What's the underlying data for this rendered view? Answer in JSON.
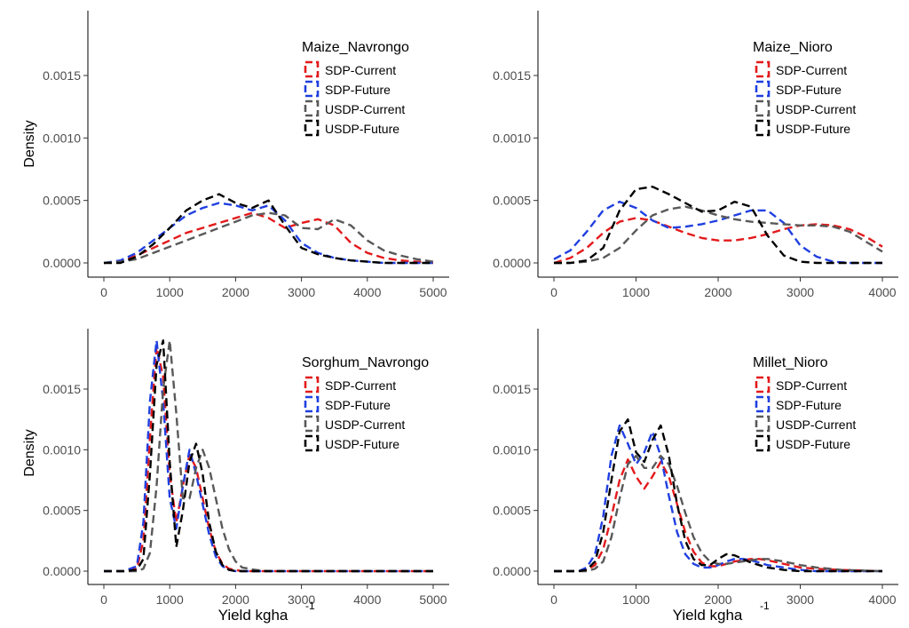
{
  "figure": {
    "y_axis_label": "Density",
    "x_axis_label_main": "Yield  kgha",
    "x_axis_label_sup": "-1"
  },
  "series_styles": [
    {
      "name": "SDP-Current",
      "color": "#e31a1c"
    },
    {
      "name": "SDP-Future",
      "color": "#1f3fe0"
    },
    {
      "name": "USDP-Current",
      "color": "#595959"
    },
    {
      "name": "USDP-Future",
      "color": "#000000"
    }
  ],
  "chart_data": [
    {
      "type": "line",
      "title": "Maize_Navrongo",
      "xlim": [
        0,
        5000
      ],
      "ylim": [
        0,
        0.0015
      ],
      "xticks": [
        "0",
        "1000",
        "2000",
        "3000",
        "4000",
        "5000"
      ],
      "yticks": [
        "0.0000",
        "0.0005",
        "0.0010",
        "0.0015"
      ],
      "grid": false,
      "legend": "top-right",
      "series": [
        {
          "name": "SDP-Current",
          "x": [
            0,
            250,
            500,
            750,
            1000,
            1250,
            1500,
            1750,
            2000,
            2250,
            2500,
            2750,
            3000,
            3250,
            3500,
            3750,
            4000,
            4250,
            4500,
            4750,
            5000
          ],
          "y": [
            0,
            1e-05,
            6e-05,
            0.00012,
            0.00018,
            0.00024,
            0.00028,
            0.00032,
            0.00036,
            0.0004,
            0.00036,
            0.00028,
            0.00032,
            0.00035,
            0.0003,
            0.00016,
            8e-05,
            4e-05,
            2e-05,
            1e-05,
            0
          ]
        },
        {
          "name": "SDP-Future",
          "x": [
            0,
            250,
            500,
            750,
            1000,
            1250,
            1500,
            1750,
            2000,
            2250,
            2500,
            2750,
            3000,
            3250,
            3500,
            3750,
            4000,
            4250,
            4500,
            4750,
            5000
          ],
          "y": [
            0,
            2e-05,
            8e-05,
            0.00018,
            0.00028,
            0.00038,
            0.00044,
            0.00048,
            0.00046,
            0.00042,
            0.00046,
            0.00034,
            0.00016,
            8e-05,
            4e-05,
            2e-05,
            1e-05,
            0,
            0,
            0,
            0
          ]
        },
        {
          "name": "USDP-Current",
          "x": [
            0,
            250,
            500,
            750,
            1000,
            1250,
            1500,
            1750,
            2000,
            2250,
            2500,
            2750,
            3000,
            3250,
            3500,
            3750,
            4000,
            4250,
            4500,
            4750,
            5000
          ],
          "y": [
            0,
            1e-05,
            3e-05,
            8e-05,
            0.00013,
            0.00018,
            0.00023,
            0.00028,
            0.00033,
            0.00038,
            0.0004,
            0.00038,
            0.00028,
            0.00027,
            0.00035,
            0.0003,
            0.00018,
            0.0001,
            6e-05,
            3e-05,
            1e-05
          ]
        },
        {
          "name": "USDP-Future",
          "x": [
            0,
            250,
            500,
            750,
            1000,
            1250,
            1500,
            1750,
            2000,
            2250,
            2500,
            2750,
            3000,
            3250,
            3500,
            3750,
            4000,
            4250,
            4500,
            4750,
            5000
          ],
          "y": [
            0,
            0,
            5e-05,
            0.00015,
            0.00028,
            0.00042,
            0.0005,
            0.00055,
            0.00048,
            0.00044,
            0.0005,
            0.0003,
            0.00012,
            7e-05,
            4e-05,
            2e-05,
            1e-05,
            0,
            0,
            0,
            0
          ]
        }
      ]
    },
    {
      "type": "line",
      "title": "Maize_Nioro",
      "xlim": [
        0,
        4000
      ],
      "ylim": [
        0,
        0.0015
      ],
      "xticks": [
        "0",
        "1000",
        "2000",
        "3000",
        "4000"
      ],
      "yticks": [
        "0.0000",
        "0.0005",
        "0.0010",
        "0.0015"
      ],
      "grid": false,
      "legend": "top-right",
      "series": [
        {
          "name": "SDP-Current",
          "x": [
            0,
            200,
            400,
            600,
            800,
            1000,
            1200,
            1400,
            1600,
            1800,
            2000,
            2200,
            2400,
            2600,
            2800,
            3000,
            3200,
            3400,
            3600,
            3800,
            4000
          ],
          "y": [
            0,
            4e-05,
            0.00012,
            0.00024,
            0.00033,
            0.00036,
            0.00034,
            0.00029,
            0.00024,
            0.0002,
            0.00018,
            0.00018,
            0.0002,
            0.00023,
            0.00027,
            0.0003,
            0.00031,
            0.0003,
            0.00027,
            0.00021,
            0.00013
          ]
        },
        {
          "name": "SDP-Future",
          "x": [
            0,
            200,
            400,
            600,
            800,
            1000,
            1200,
            1400,
            1600,
            1800,
            2000,
            2200,
            2400,
            2600,
            2800,
            3000,
            3200,
            3400,
            3600,
            3800,
            4000
          ],
          "y": [
            3e-05,
            0.0001,
            0.00025,
            0.00042,
            0.00049,
            0.00044,
            0.00034,
            0.00028,
            0.00029,
            0.00031,
            0.00034,
            0.00038,
            0.00042,
            0.00042,
            0.00032,
            0.00014,
            5e-05,
            1e-05,
            0,
            0,
            0
          ]
        },
        {
          "name": "USDP-Current",
          "x": [
            0,
            200,
            400,
            600,
            800,
            1000,
            1200,
            1400,
            1600,
            1800,
            2000,
            2200,
            2400,
            2600,
            2800,
            3000,
            3200,
            3400,
            3600,
            3800,
            4000
          ],
          "y": [
            0,
            0,
            1e-05,
            4e-05,
            0.00012,
            0.00026,
            0.00038,
            0.00043,
            0.00045,
            0.00042,
            0.00038,
            0.00035,
            0.00033,
            0.00032,
            0.00031,
            0.0003,
            0.0003,
            0.00029,
            0.00025,
            0.00017,
            9e-05
          ]
        },
        {
          "name": "USDP-Future",
          "x": [
            0,
            200,
            400,
            600,
            800,
            1000,
            1200,
            1400,
            1600,
            1800,
            2000,
            2200,
            2400,
            2600,
            2800,
            3000,
            3200,
            3400,
            3600,
            3800,
            4000
          ],
          "y": [
            0,
            0,
            2e-05,
            0.00012,
            0.00042,
            0.00059,
            0.00061,
            0.00055,
            0.00048,
            0.00041,
            0.00042,
            0.00049,
            0.00045,
            0.00022,
            6e-05,
            1e-05,
            0,
            0,
            0,
            0,
            0
          ]
        }
      ]
    },
    {
      "type": "line",
      "title": "Sorghum_Navrongo",
      "xlim": [
        0,
        5000
      ],
      "ylim": [
        0,
        0.0015
      ],
      "xticks": [
        "0",
        "1000",
        "2000",
        "3000",
        "4000",
        "5000"
      ],
      "yticks": [
        "0.0000",
        "0.0005",
        "0.0010",
        "0.0015"
      ],
      "grid": false,
      "legend": "top-right",
      "series": [
        {
          "name": "SDP-Current",
          "x": [
            0,
            300,
            500,
            600,
            700,
            800,
            900,
            1000,
            1100,
            1200,
            1300,
            1400,
            1500,
            1600,
            1700,
            1800,
            1900,
            2000,
            2100,
            2300,
            2500,
            3000,
            4000,
            5000
          ],
          "y": [
            0,
            0,
            2e-05,
            0.00025,
            0.0011,
            0.00185,
            0.0016,
            0.0008,
            0.0004,
            0.0007,
            0.00096,
            0.00085,
            0.0006,
            0.00035,
            0.00016,
            6e-05,
            2e-05,
            1e-05,
            0,
            0,
            0,
            0,
            0,
            0
          ]
        },
        {
          "name": "SDP-Future",
          "x": [
            0,
            300,
            500,
            600,
            700,
            800,
            900,
            1000,
            1100,
            1200,
            1300,
            1400,
            1500,
            1600,
            1700,
            1800,
            1900,
            2000,
            2100,
            2300,
            2500,
            3000,
            4000,
            5000
          ],
          "y": [
            0,
            0,
            4e-05,
            0.0004,
            0.0014,
            0.0019,
            0.0014,
            0.0006,
            0.00035,
            0.0007,
            0.001,
            0.0008,
            0.00055,
            0.0003,
            0.00012,
            4e-05,
            1e-05,
            0,
            0,
            0,
            0,
            0,
            0,
            0
          ]
        },
        {
          "name": "USDP-Current",
          "x": [
            0,
            300,
            500,
            600,
            700,
            800,
            900,
            1000,
            1100,
            1200,
            1300,
            1400,
            1500,
            1600,
            1700,
            1800,
            1900,
            2000,
            2100,
            2300,
            2500,
            3000,
            4000,
            5000
          ],
          "y": [
            0,
            0,
            0,
            2e-05,
            0.00015,
            0.0007,
            0.0015,
            0.0019,
            0.0013,
            0.0006,
            0.0006,
            0.00085,
            0.001,
            0.00085,
            0.0006,
            0.00035,
            0.00018,
            8e-05,
            3e-05,
            1e-05,
            0,
            0,
            0,
            0
          ]
        },
        {
          "name": "USDP-Future",
          "x": [
            0,
            300,
            500,
            600,
            700,
            800,
            900,
            1000,
            1100,
            1200,
            1300,
            1400,
            1500,
            1600,
            1700,
            1800,
            1900,
            2000,
            2100,
            2300,
            2500,
            3000,
            4000,
            5000
          ],
          "y": [
            0,
            0,
            1e-05,
            0.0001,
            0.0008,
            0.0017,
            0.0019,
            0.0009,
            0.0002,
            0.0005,
            0.0009,
            0.00105,
            0.0008,
            0.0004,
            0.00016,
            5e-05,
            1e-05,
            0,
            0,
            0,
            0,
            0,
            0,
            0
          ]
        }
      ]
    },
    {
      "type": "line",
      "title": "Millet_Nioro",
      "xlim": [
        0,
        4000
      ],
      "ylim": [
        0,
        0.0015
      ],
      "xticks": [
        "0",
        "1000",
        "2000",
        "3000",
        "4000"
      ],
      "yticks": [
        "0.0000",
        "0.0005",
        "0.0010",
        "0.0015"
      ],
      "grid": false,
      "legend": "top-right",
      "series": [
        {
          "name": "SDP-Current",
          "x": [
            0,
            300,
            400,
            500,
            600,
            700,
            800,
            900,
            1000,
            1100,
            1200,
            1300,
            1400,
            1500,
            1600,
            1700,
            1800,
            1900,
            2000,
            2100,
            2200,
            2300,
            2400,
            2500,
            2600,
            2800,
            3000,
            3200,
            3500,
            4000
          ],
          "y": [
            0,
            0,
            1e-05,
            5e-05,
            0.00018,
            0.00045,
            0.00075,
            0.00092,
            0.00078,
            0.00068,
            0.00078,
            0.0009,
            0.00078,
            0.00055,
            0.00032,
            0.00016,
            7e-05,
            4e-05,
            4e-05,
            6e-05,
            8e-05,
            9e-05,
            0.0001,
            0.0001,
            9e-05,
            6e-05,
            3e-05,
            2e-05,
            1e-05,
            0
          ]
        },
        {
          "name": "SDP-Future",
          "x": [
            0,
            300,
            400,
            500,
            600,
            700,
            800,
            900,
            1000,
            1100,
            1200,
            1300,
            1400,
            1500,
            1600,
            1700,
            1800,
            1900,
            2000,
            2100,
            2200,
            2300,
            2400,
            2500,
            2600,
            2800,
            3000,
            3200,
            3500,
            4000
          ],
          "y": [
            0,
            0,
            3e-05,
            0.00014,
            0.00045,
            0.00095,
            0.0012,
            0.00105,
            0.00088,
            0.00098,
            0.00115,
            0.00095,
            0.00062,
            0.00032,
            0.00014,
            6e-05,
            3e-05,
            3e-05,
            5e-05,
            8e-05,
            0.0001,
            0.0001,
            9e-05,
            7e-05,
            5e-05,
            3e-05,
            1e-05,
            0,
            0,
            0
          ]
        },
        {
          "name": "USDP-Current",
          "x": [
            0,
            300,
            400,
            500,
            600,
            700,
            800,
            900,
            1000,
            1100,
            1200,
            1300,
            1400,
            1500,
            1600,
            1700,
            1800,
            1900,
            2000,
            2100,
            2200,
            2300,
            2400,
            2500,
            2600,
            2800,
            3000,
            3200,
            3500,
            4000
          ],
          "y": [
            0,
            0,
            0,
            2e-05,
            8e-05,
            0.00028,
            0.0006,
            0.00088,
            0.00095,
            0.00085,
            0.00085,
            0.00095,
            0.00088,
            0.0007,
            0.00048,
            0.00028,
            0.00015,
            8e-05,
            6e-05,
            6e-05,
            7e-05,
            8e-05,
            9e-05,
            0.0001,
            0.0001,
            8e-05,
            5e-05,
            3e-05,
            1e-05,
            0
          ]
        },
        {
          "name": "USDP-Future",
          "x": [
            0,
            300,
            400,
            500,
            600,
            700,
            800,
            900,
            1000,
            1100,
            1200,
            1300,
            1400,
            1500,
            1600,
            1700,
            1800,
            1900,
            2000,
            2100,
            2200,
            2300,
            2400,
            2500,
            2600,
            2800,
            3000,
            3200,
            3500,
            4000
          ],
          "y": [
            0,
            0,
            1e-05,
            8e-05,
            0.00032,
            0.00075,
            0.00115,
            0.00125,
            0.00098,
            0.0009,
            0.00108,
            0.0012,
            0.00095,
            0.00055,
            0.00025,
            0.0001,
            5e-05,
            5e-05,
            0.0001,
            0.00014,
            0.00013,
            0.0001,
            7e-05,
            5e-05,
            3e-05,
            1e-05,
            0,
            0,
            0,
            0
          ]
        }
      ]
    }
  ]
}
